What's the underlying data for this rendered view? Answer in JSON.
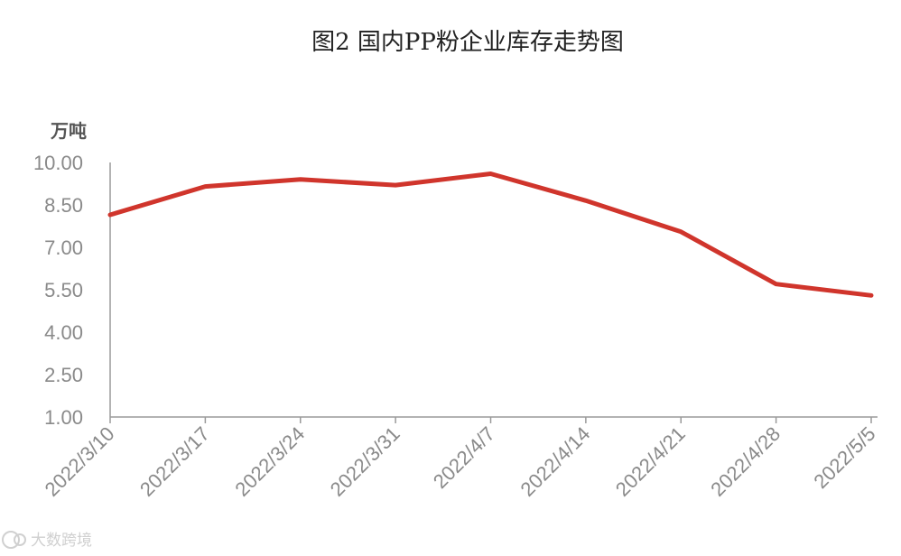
{
  "chart_data": {
    "type": "line",
    "title": "图2 国内PP粉企业库存走势图",
    "unit_label": "万吨",
    "x": [
      "2022/3/10",
      "2022/3/17",
      "2022/3/24",
      "2022/3/31",
      "2022/4/7",
      "2022/4/14",
      "2022/4/21",
      "2022/4/28",
      "2022/5/5"
    ],
    "series": [
      {
        "values": [
          8.15,
          9.15,
          9.4,
          9.2,
          9.6,
          8.65,
          7.55,
          5.7,
          5.3
        ],
        "color": "#d0352c"
      }
    ],
    "ylim": [
      1.0,
      10.0
    ],
    "yticks": [
      "10.00",
      "8.50",
      "7.00",
      "5.50",
      "4.00",
      "2.50",
      "1.00"
    ],
    "ytick_values": [
      10.0,
      8.5,
      7.0,
      5.5,
      4.0,
      2.5,
      1.0
    ],
    "grid": false,
    "legend": "none"
  },
  "watermark": {
    "icon": "logo-icon",
    "text": "大数跨境"
  }
}
